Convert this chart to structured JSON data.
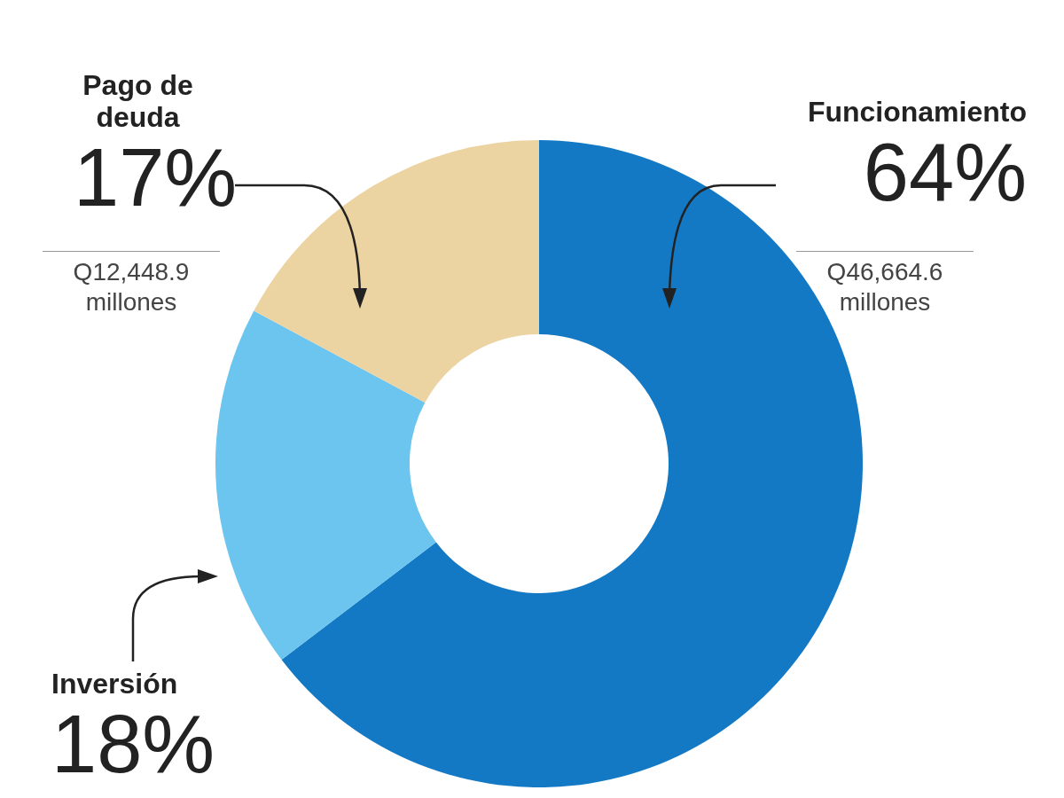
{
  "chart_data": {
    "type": "donut",
    "categories": [
      "Funcionamiento",
      "Inversión",
      "Pago de deuda"
    ],
    "values": [
      64,
      18,
      17
    ],
    "colors": [
      "#1479c4",
      "#6cc5ee",
      "#ecd3a2"
    ],
    "value_labels": [
      "64%",
      "18%",
      "17%"
    ],
    "annotations": [
      "Q46,664.6 millones",
      "Q12,448.9 millones"
    ]
  }
}
